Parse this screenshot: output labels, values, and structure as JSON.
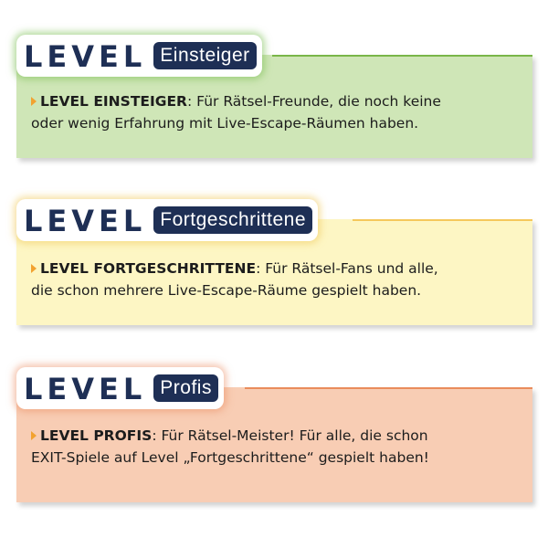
{
  "levels": [
    {
      "level_word": "LEVEL",
      "tag": "Einsteiger",
      "heading": "LEVEL EINSTEIGER",
      "description_line1": ": Für Rätsel-Freunde, die noch keine",
      "description_line2": "oder wenig Erfahrung mit Live-Escape-Räumen haben.",
      "panel_color": "#cfe6b7",
      "border_color": "#7ab648"
    },
    {
      "level_word": "LEVEL",
      "tag": "Fortgeschrittene",
      "heading": "LEVEL FORTGESCHRITTENE",
      "description_line1": ": Für Rätsel-Fans und alle,",
      "description_line2": "die schon mehrere Live-Escape-Räume gespielt haben.",
      "panel_color": "#fdf6c4",
      "border_color": "#f5c85c"
    },
    {
      "level_word": "LEVEL",
      "tag": "Profis",
      "heading": "LEVEL PROFIS",
      "description_line1": ": Für Rätsel-Meister! Für alle, die schon",
      "description_line2": "EXIT-Spiele auf Level „Fortgeschrittene“ gespielt haben!",
      "panel_color": "#f8cdb4",
      "border_color": "#ea8c5c"
    }
  ]
}
